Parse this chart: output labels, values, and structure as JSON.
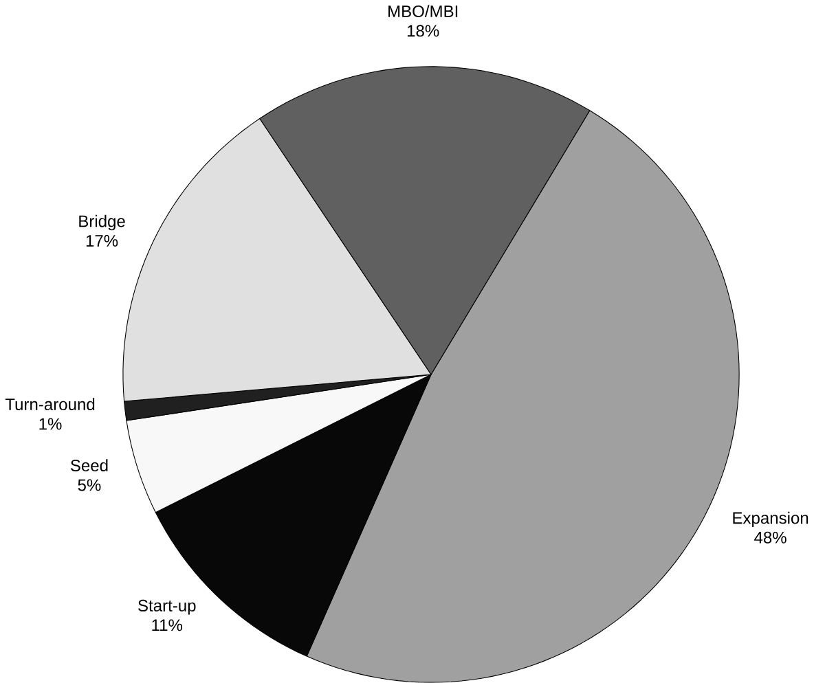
{
  "chart_data": {
    "type": "pie",
    "categories": [
      "Expansion",
      "Start-up",
      "Seed",
      "Turn-around",
      "Bridge",
      "MBO/MBI"
    ],
    "values": [
      48,
      11,
      5,
      1,
      17,
      18
    ],
    "value_labels": [
      "48%",
      "11%",
      "5%",
      "1%",
      "17%",
      "18%"
    ],
    "colors": [
      "#a0a0a0",
      "#080808",
      "#f8f8f8",
      "#202020",
      "#e0e0e0",
      "#606060"
    ]
  }
}
